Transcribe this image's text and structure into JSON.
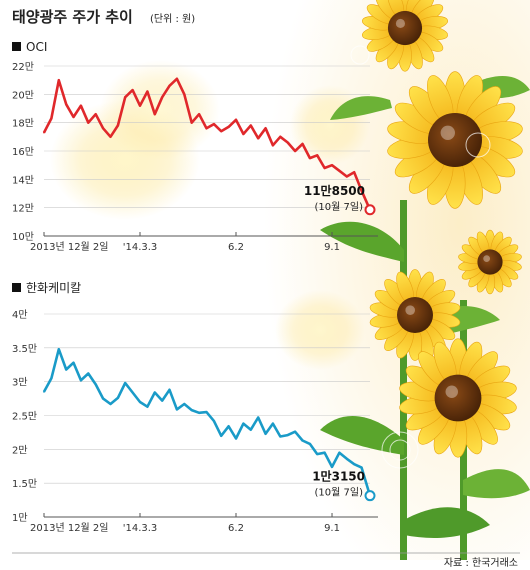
{
  "header": {
    "title": "태양광주 주가 추이",
    "unit_note": "(단위 : 원)"
  },
  "source": "자료 : 한국거래소",
  "chart_data": [
    {
      "type": "line",
      "title": "OCI",
      "color": "#e0282b",
      "yticks": [
        "22만",
        "20만",
        "18만",
        "16만",
        "14만",
        "12만",
        "10만"
      ],
      "ylim": [
        100000,
        220000
      ],
      "xticks": [
        "2013년 12월 2일",
        "'14.3.3",
        "6.2",
        "9.1"
      ],
      "annotation": {
        "value_label": "11만8500",
        "date_label": "(10월 7일)"
      },
      "x": [
        "2013-12-02",
        "2013-12-09",
        "2013-12-16",
        "2013-12-23",
        "2013-12-30",
        "2014-01-06",
        "2014-01-13",
        "2014-01-20",
        "2014-01-27",
        "2014-02-03",
        "2014-02-10",
        "2014-02-17",
        "2014-02-24",
        "2014-03-03",
        "2014-03-10",
        "2014-03-17",
        "2014-03-24",
        "2014-03-31",
        "2014-04-07",
        "2014-04-14",
        "2014-04-21",
        "2014-04-28",
        "2014-05-05",
        "2014-05-12",
        "2014-05-19",
        "2014-05-26",
        "2014-06-02",
        "2014-06-09",
        "2014-06-16",
        "2014-06-23",
        "2014-06-30",
        "2014-07-07",
        "2014-07-14",
        "2014-07-21",
        "2014-07-28",
        "2014-08-04",
        "2014-08-11",
        "2014-08-18",
        "2014-08-25",
        "2014-09-01",
        "2014-09-08",
        "2014-09-15",
        "2014-09-22",
        "2014-09-29",
        "2014-10-07"
      ],
      "values": [
        173000,
        183000,
        210000,
        193000,
        184000,
        192000,
        180000,
        186000,
        176000,
        170000,
        178000,
        198000,
        203000,
        192000,
        202000,
        186000,
        198000,
        206000,
        211000,
        200000,
        180000,
        186000,
        176000,
        179000,
        174000,
        177000,
        182000,
        172000,
        178000,
        169000,
        176000,
        164000,
        170000,
        166000,
        160000,
        165000,
        155000,
        157000,
        148000,
        150000,
        146000,
        142000,
        145000,
        132000,
        118500
      ]
    },
    {
      "type": "line",
      "title": "한화케미칼",
      "color": "#1a9bc8",
      "yticks": [
        "4만",
        "3.5만",
        "3만",
        "2.5만",
        "2만",
        "1.5만",
        "1만"
      ],
      "ylim": [
        10000,
        40000
      ],
      "xticks": [
        "2013년 12월 2일",
        "'14.3.3",
        "6.2",
        "9.1"
      ],
      "annotation": {
        "value_label": "1만3150",
        "date_label": "(10월 7일)"
      },
      "x": [
        "2013-12-02",
        "2013-12-09",
        "2013-12-16",
        "2013-12-23",
        "2013-12-30",
        "2014-01-06",
        "2014-01-13",
        "2014-01-20",
        "2014-01-27",
        "2014-02-03",
        "2014-02-10",
        "2014-02-17",
        "2014-02-24",
        "2014-03-03",
        "2014-03-10",
        "2014-03-17",
        "2014-03-24",
        "2014-03-31",
        "2014-04-07",
        "2014-04-14",
        "2014-04-21",
        "2014-04-28",
        "2014-05-05",
        "2014-05-12",
        "2014-05-19",
        "2014-05-26",
        "2014-06-02",
        "2014-06-09",
        "2014-06-16",
        "2014-06-23",
        "2014-06-30",
        "2014-07-07",
        "2014-07-14",
        "2014-07-21",
        "2014-07-28",
        "2014-08-04",
        "2014-08-11",
        "2014-08-18",
        "2014-08-25",
        "2014-09-01",
        "2014-09-08",
        "2014-09-15",
        "2014-09-22",
        "2014-09-29",
        "2014-10-07"
      ],
      "values": [
        28500,
        30500,
        34800,
        31800,
        32800,
        30200,
        31200,
        29600,
        27500,
        26700,
        27600,
        29800,
        28400,
        27000,
        26300,
        28400,
        27200,
        28800,
        25900,
        26700,
        25800,
        25400,
        25500,
        24200,
        22000,
        23400,
        21600,
        23800,
        22900,
        24700,
        22300,
        23800,
        21900,
        22100,
        22600,
        21300,
        20800,
        19300,
        19500,
        17400,
        19500,
        18600,
        17800,
        17300,
        13150
      ]
    }
  ]
}
